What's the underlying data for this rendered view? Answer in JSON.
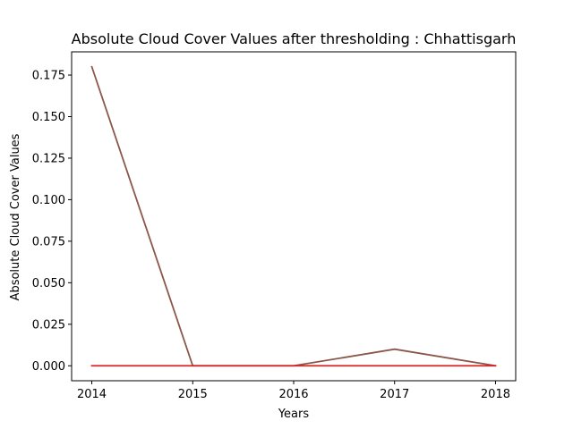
{
  "chart_data": {
    "type": "line",
    "title": "Absolute Cloud Cover Values after thresholding : Chhattisgarh",
    "xlabel": "Years",
    "ylabel": "Absolute Cloud Cover Values",
    "x": [
      2014,
      2015,
      2016,
      2017,
      2018
    ],
    "x_ticks": [
      "2014",
      "2015",
      "2016",
      "2017",
      "2018"
    ],
    "xlim": [
      2013.8,
      2018.2
    ],
    "ylim": [
      -0.009,
      0.189
    ],
    "y_ticks": [
      "0.000",
      "0.025",
      "0.050",
      "0.075",
      "0.100",
      "0.125",
      "0.150",
      "0.175"
    ],
    "grid": false,
    "series": [
      {
        "color": "#8c564b",
        "values": [
          0.18,
          0.0,
          0.0,
          0.01,
          0.0
        ]
      },
      {
        "color": "#d62728",
        "values": [
          0.0,
          0.0,
          0.0,
          0.0,
          0.0
        ]
      }
    ]
  }
}
